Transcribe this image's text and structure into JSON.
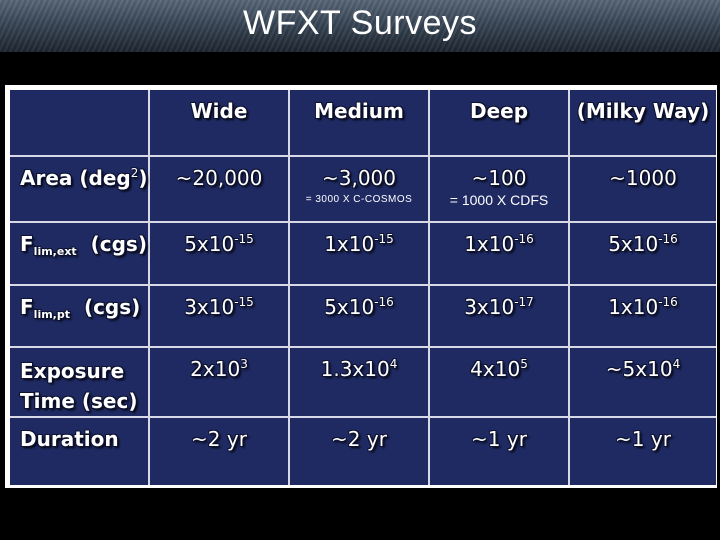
{
  "slide": {
    "title": "WFXT Surveys"
  },
  "table": {
    "columns": {
      "wide": "Wide",
      "medium": "Medium",
      "deep": "Deep",
      "milky_way": "(Milky Way)"
    },
    "rows": {
      "area": {
        "label": "Area (deg",
        "label_sup": "2",
        "label_tail": ")",
        "wide": "~20,000",
        "medium": "~3,000",
        "medium_note": "= 3000 X C-COSMOS",
        "deep": "~100",
        "deep_note": "= 1000 X CDFS",
        "milky_way": "~1000"
      },
      "flim_ext": {
        "label": "F",
        "label_sub": "lim,ext",
        "label_tail": "(cgs)",
        "wide_base": "5x10",
        "wide_exp": "-15",
        "medium_base": "1x10",
        "medium_exp": "-15",
        "deep_base": "1x10",
        "deep_exp": "-16",
        "milky_way_base": "5x10",
        "milky_way_exp": "-16"
      },
      "flim_pt": {
        "label": "F",
        "label_sub": "lim,pt",
        "label_tail": "(cgs)",
        "wide_base": "3x10",
        "wide_exp": "-15",
        "medium_base": "5x10",
        "medium_exp": "-16",
        "deep_base": "3x10",
        "deep_exp": "-17",
        "milky_way_base": "1x10",
        "milky_way_exp": "-16"
      },
      "exposure": {
        "label_line1": "Exposure",
        "label_line2": "Time (sec)",
        "wide_base": "2x10",
        "wide_exp": "3",
        "medium_base": "1.3x10",
        "medium_exp": "4",
        "deep_base": "4x10",
        "deep_exp": "5",
        "milky_way_base": "~5x10",
        "milky_way_exp": "4"
      },
      "duration": {
        "label": "Duration",
        "wide": "~2 yr",
        "medium": "~2 yr",
        "deep": "~1 yr",
        "milky_way": "~1 yr"
      }
    }
  }
}
